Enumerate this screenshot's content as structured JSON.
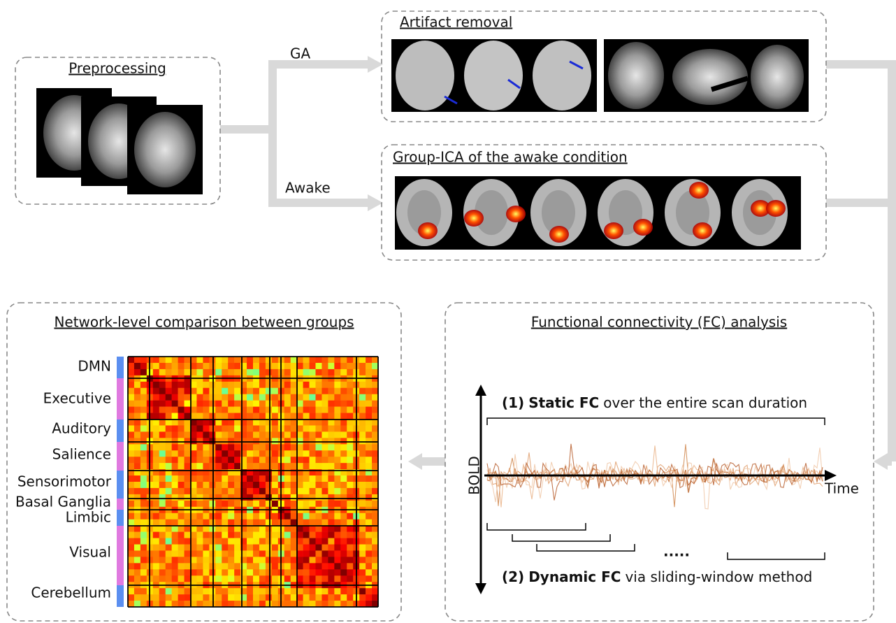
{
  "preprocessing": {
    "title": "Preprocessing"
  },
  "branches": {
    "ga": "GA",
    "awake": "Awake"
  },
  "artifact_removal": {
    "title": "Artifact removal"
  },
  "group_ica": {
    "title": "Group-ICA of the awake condition"
  },
  "network_comparison": {
    "title": "Network-level comparison between groups",
    "networks": [
      "DMN",
      "Executive",
      "Auditory",
      "Salience",
      "Sensorimotor",
      "Basal Ganglia",
      "Limbic",
      "Visual",
      "Cerebellum"
    ]
  },
  "fc_analysis": {
    "title": "Functional connectivity (FC) analysis",
    "y_axis": "BOLD",
    "x_axis": "Time",
    "static": {
      "number": "(1)",
      "term": "Static FC",
      "rest": "over the entire scan duration"
    },
    "dynamic": {
      "number": "(2)",
      "term": "Dynamic FC",
      "rest": "via sliding-window method"
    },
    "ellipsis": "....."
  }
}
